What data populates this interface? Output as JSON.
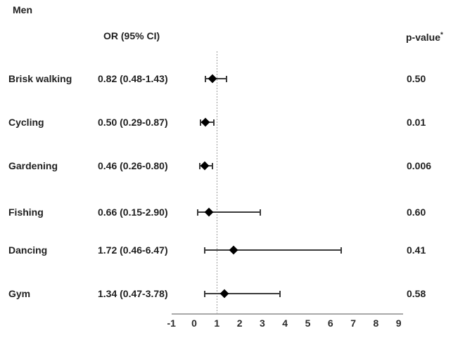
{
  "figure": {
    "title": "Men",
    "or_header": "OR (95% CI)",
    "p_header": "p-value",
    "p_header_sup": "*"
  },
  "chart_data": {
    "type": "forest",
    "title": "Men",
    "or_column_header": "OR (95% CI)",
    "p_column_header": "p-value*",
    "xlabel": "",
    "ylabel": "",
    "xlim": [
      -1,
      9
    ],
    "x_ticks": [
      -1,
      0,
      1,
      2,
      3,
      4,
      5,
      6,
      7,
      8,
      9
    ],
    "reference_line_x": 1,
    "grid": false,
    "marker": "diamond",
    "colors": {
      "marker": "#000000",
      "error_bar": "#3a3a3a",
      "axis_line": "#a8a8a8",
      "reference_line": "#9a9a9a",
      "text": "#1f1f1f"
    },
    "rows": [
      {
        "label": "Brisk walking",
        "or": 0.82,
        "ci_low": 0.48,
        "ci_high": 1.43,
        "or_text": "0.82 (0.48-1.43)",
        "p_value": "0.50"
      },
      {
        "label": "Cycling",
        "or": 0.5,
        "ci_low": 0.29,
        "ci_high": 0.87,
        "or_text": "0.50 (0.29-0.87)",
        "p_value": "0.01"
      },
      {
        "label": "Gardening",
        "or": 0.46,
        "ci_low": 0.26,
        "ci_high": 0.8,
        "or_text": "0.46 (0.26-0.80)",
        "p_value": "0.006"
      },
      {
        "label": "Fishing",
        "or": 0.66,
        "ci_low": 0.15,
        "ci_high": 2.9,
        "or_text": "0.66 (0.15-2.90)",
        "p_value": "0.60"
      },
      {
        "label": "Dancing",
        "or": 1.72,
        "ci_low": 0.46,
        "ci_high": 6.47,
        "or_text": "1.72 (0.46-6.47)",
        "p_value": "0.41"
      },
      {
        "label": "Gym",
        "or": 1.34,
        "ci_low": 0.47,
        "ci_high": 3.78,
        "or_text": "1.34 (0.47-3.78)",
        "p_value": "0.58"
      }
    ]
  }
}
